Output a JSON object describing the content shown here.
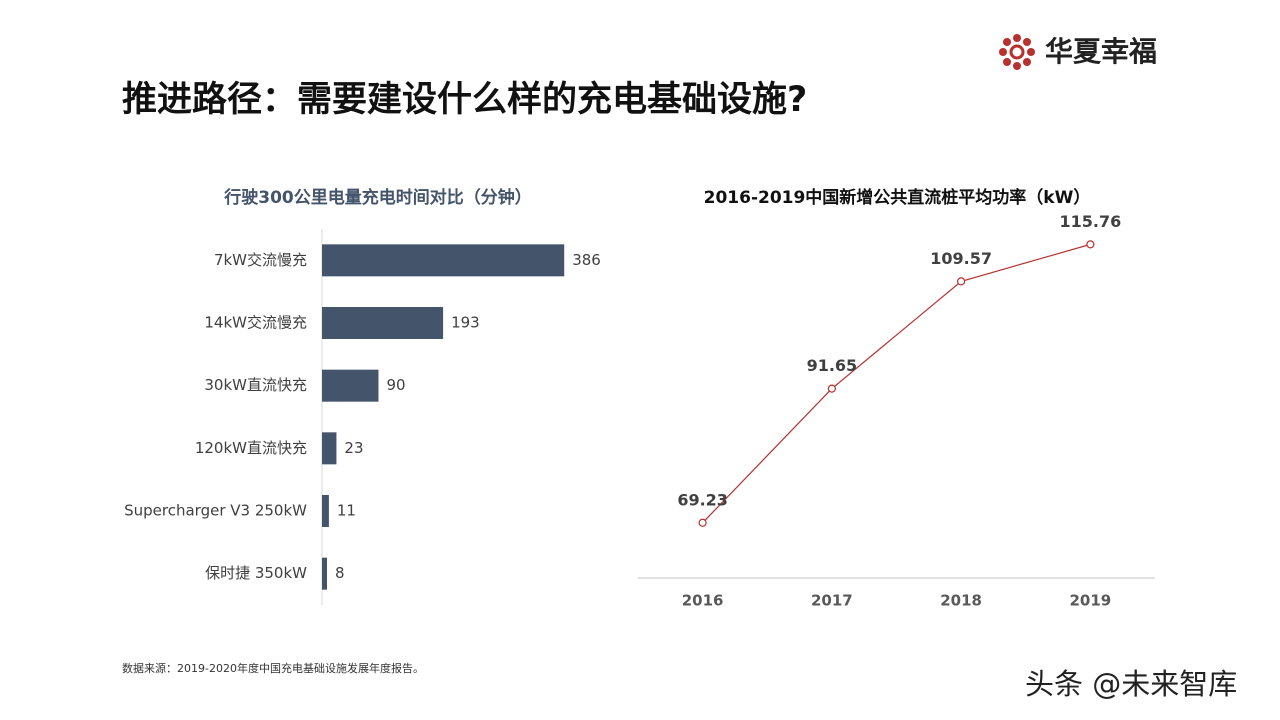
{
  "header": {
    "title": "推进路径：需要建设什么样的充电基础设施?",
    "logo": "华夏幸福"
  },
  "source": "数据来源：2019-2020年度中国充电基础设施发展年度报告。",
  "watermark": "头条 @未来智库",
  "chart_data": [
    {
      "type": "hbar",
      "title": "行驶300公里电量充电时间对比（分钟）",
      "categories": [
        "7kW交流慢充",
        "14kW交流慢充",
        "30kW直流快充",
        "120kW直流快充",
        "Supercharger V3 250kW",
        "保时捷 350kW"
      ],
      "values": [
        386,
        193,
        90,
        23,
        11,
        8
      ],
      "color": "#44546a",
      "xlim": [
        0,
        400
      ]
    },
    {
      "type": "line",
      "title": "2016-2019中国新增公共直流桩平均功率（kW）",
      "categories": [
        "2016",
        "2017",
        "2018",
        "2019"
      ],
      "values": [
        69.23,
        91.65,
        109.57,
        115.76
      ],
      "color": "#b8312f",
      "ylim": [
        60,
        120
      ]
    }
  ]
}
